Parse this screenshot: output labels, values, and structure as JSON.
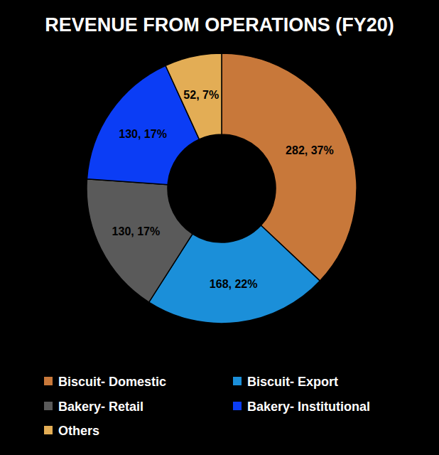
{
  "chart_data": {
    "type": "pie",
    "title": "REVENUE FROM OPERATIONS (FY20)",
    "categories": [
      "Biscuit- Domestic",
      "Biscuit- Export",
      "Bakery- Retail",
      "Bakery- Institutional",
      "Others"
    ],
    "values": [
      282,
      168,
      130,
      130,
      52
    ],
    "value_labels": [
      "282, 37%",
      "168, 22%",
      "130, 17%",
      "130, 17%",
      "52, 7%"
    ],
    "colors": [
      "#c8783a",
      "#1b8fd9",
      "#5a5a5a",
      "#0b3df5",
      "#e3ad55"
    ],
    "data_labels": true,
    "legend": "bottom"
  }
}
